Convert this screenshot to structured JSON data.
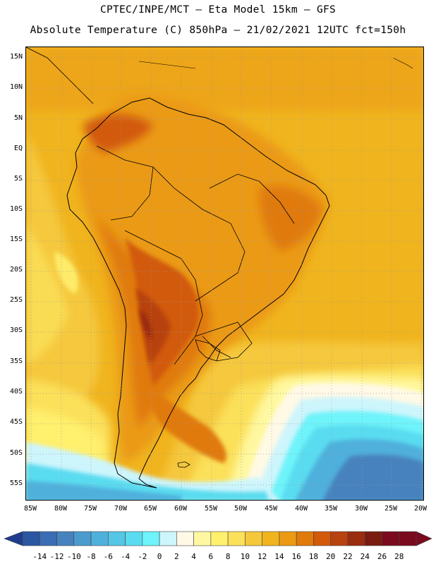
{
  "title_line1": "CPTEC/INPE/MCT –  Eta Model 15km – GFS",
  "title_line2": "Absolute Temperature (C) 850hPa – 21/02/2021 12UTC fct=150h",
  "lat_labels": [
    "15N",
    "10N",
    "5N",
    "EQ",
    "5S",
    "10S",
    "15S",
    "20S",
    "25S",
    "30S",
    "35S",
    "40S",
    "45S",
    "50S",
    "55S"
  ],
  "lon_labels": [
    "85W",
    "80W",
    "75W",
    "70W",
    "65W",
    "60W",
    "55W",
    "50W",
    "45W",
    "40W",
    "35W",
    "30W",
    "25W",
    "20W"
  ],
  "legend": {
    "ticks": [
      "-14",
      "-12",
      "-10",
      "-8",
      "-6",
      "-4",
      "-2",
      "0",
      "2",
      "4",
      "6",
      "8",
      "10",
      "12",
      "14",
      "16",
      "18",
      "20",
      "22",
      "24",
      "26",
      "28"
    ],
    "colors": [
      "#1e3c8c",
      "#2a56a2",
      "#3a6db4",
      "#4682be",
      "#4b9bce",
      "#4fb0dc",
      "#55c6e4",
      "#5adcf0",
      "#6ef4fa",
      "#cdf5fc",
      "#fff9e6",
      "#fff8a0",
      "#fff06e",
      "#fbe05a",
      "#f5c83c",
      "#f0b41e",
      "#eb9a14",
      "#e07a0a",
      "#d25a0a",
      "#b84210",
      "#9a2c10",
      "#7a1a10",
      "#7a0a1e",
      "#280a78"
    ]
  }
}
